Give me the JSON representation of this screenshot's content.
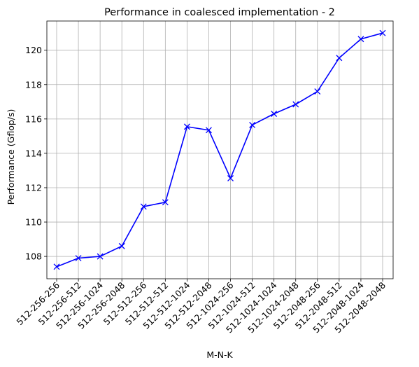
{
  "chart_data": {
    "type": "line",
    "title": "Performance in coalesced implementation - 2",
    "xlabel": "M-N-K",
    "ylabel": "Performance (Gflop/s)",
    "categories": [
      "512-256-256",
      "512-256-512",
      "512-256-1024",
      "512-256-2048",
      "512-512-256",
      "512-512-512",
      "512-512-1024",
      "512-512-2048",
      "512-1024-256",
      "512-1024-512",
      "512-1024-1024",
      "512-1024-2048",
      "512-2048-256",
      "512-2048-512",
      "512-2048-1024",
      "512-2048-2048"
    ],
    "values": [
      107.4,
      107.9,
      108.0,
      108.6,
      110.9,
      111.15,
      115.55,
      115.35,
      112.55,
      115.65,
      116.3,
      116.85,
      117.6,
      119.55,
      120.65,
      121.0
    ],
    "ylim": [
      106.7,
      121.7
    ],
    "yticks": [
      108,
      110,
      112,
      114,
      116,
      118,
      120
    ],
    "grid": true,
    "line_color": "#0000ff",
    "marker": "x"
  }
}
